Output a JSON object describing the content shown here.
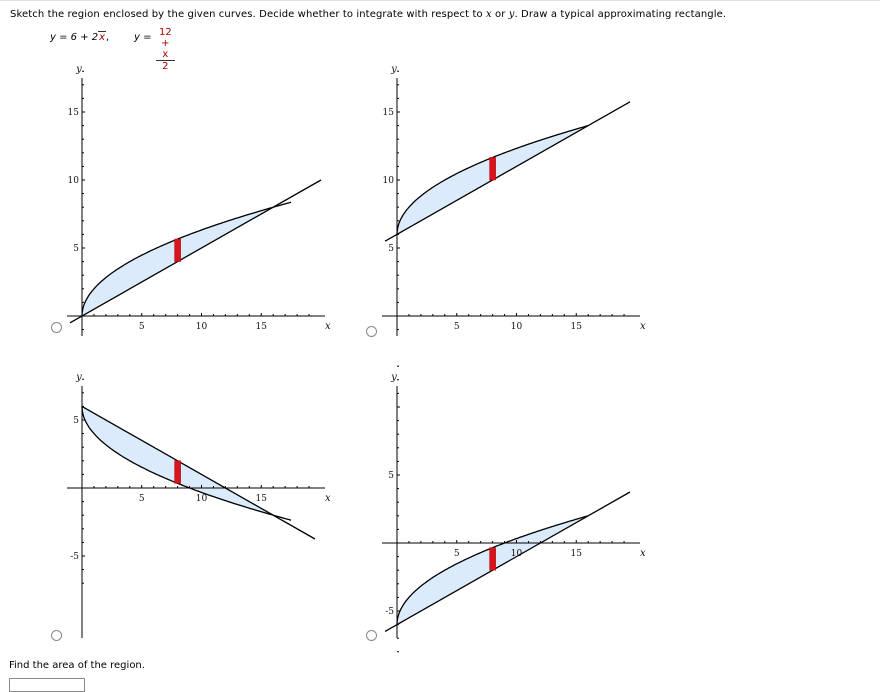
{
  "question": {
    "text_before_x": "Sketch the region enclosed by the given curves. Decide whether to integrate with respect to ",
    "var_x": "x",
    "text_or": " or ",
    "var_y": "y",
    "text_after": ". Draw a typical approximating rectangle."
  },
  "equations": {
    "eq1_lhs": "y = 6 + 2",
    "eq1_radicand": "x",
    "eq1_sep": ",",
    "eq2_lhs": "y =",
    "eq2_numerator": "12 + x",
    "eq2_denominator": "2"
  },
  "graphs": [
    {
      "option": "A",
      "x_ticks": [
        "5",
        "10",
        "15"
      ],
      "y_ticks": [
        "15",
        "10",
        "5"
      ],
      "xlabel": "x",
      "ylabel": "y",
      "xrange": [
        0,
        20
      ],
      "yrange": [
        -1,
        18
      ],
      "curves": [
        "sqrt",
        "line"
      ],
      "sqrt_curve": {
        "a": 0,
        "b": 2,
        "x_end": 17.5
      },
      "line_curve": {
        "m": 0.5,
        "c": 0,
        "x_start": -1,
        "x_end": 20
      },
      "intersection_x": 16,
      "rect_x": 8,
      "selected": false
    },
    {
      "option": "B",
      "x_ticks": [
        "5",
        "10",
        "15"
      ],
      "y_ticks": [
        "15",
        "10",
        "5"
      ],
      "xlabel": "x",
      "ylabel": "y",
      "xrange": [
        0,
        20
      ],
      "yrange": [
        -1,
        18
      ],
      "sqrt_curve": {
        "a": 6,
        "b": 2,
        "x_end": 16
      },
      "line_curve": {
        "m": 0.5,
        "c": 6,
        "x_start": -1,
        "x_end": 19.5
      },
      "intersection_x": 16,
      "rect_x": 8,
      "selected": false
    },
    {
      "option": "C",
      "x_ticks": [
        "5",
        "10",
        "15"
      ],
      "y_ticks": [
        "5",
        "-5"
      ],
      "xlabel": "x",
      "ylabel": "y",
      "xrange": [
        0,
        20
      ],
      "yrange": [
        -7,
        8
      ],
      "sqrt_curve": {
        "a": 6,
        "b": -2,
        "x_end": 17.5
      },
      "line_curve": {
        "m": -0.5,
        "c": 6,
        "x_start": 0,
        "x_end": 19.5
      },
      "intersection_x": 16,
      "rect_x": 8,
      "selected": false
    },
    {
      "option": "D",
      "x_ticks": [
        "5",
        "10",
        "15"
      ],
      "y_ticks": [
        "5",
        "-5"
      ],
      "xlabel": "x",
      "ylabel": "y",
      "xrange": [
        0,
        20
      ],
      "yrange": [
        -8,
        13
      ],
      "sqrt_curve": {
        "a": -6,
        "b": 2,
        "x_end": 16
      },
      "line_curve": {
        "m": 0.5,
        "c": -6,
        "x_start": -1,
        "x_end": 19.5
      },
      "intersection_x": 16,
      "rect_x": 8,
      "selected": false
    }
  ],
  "area_prompt": "Find the area of the region.",
  "answer_value": "",
  "colors": {
    "region": "#dcebfb",
    "rectangle": "#d8141e",
    "equation_accent": "#a00000"
  }
}
